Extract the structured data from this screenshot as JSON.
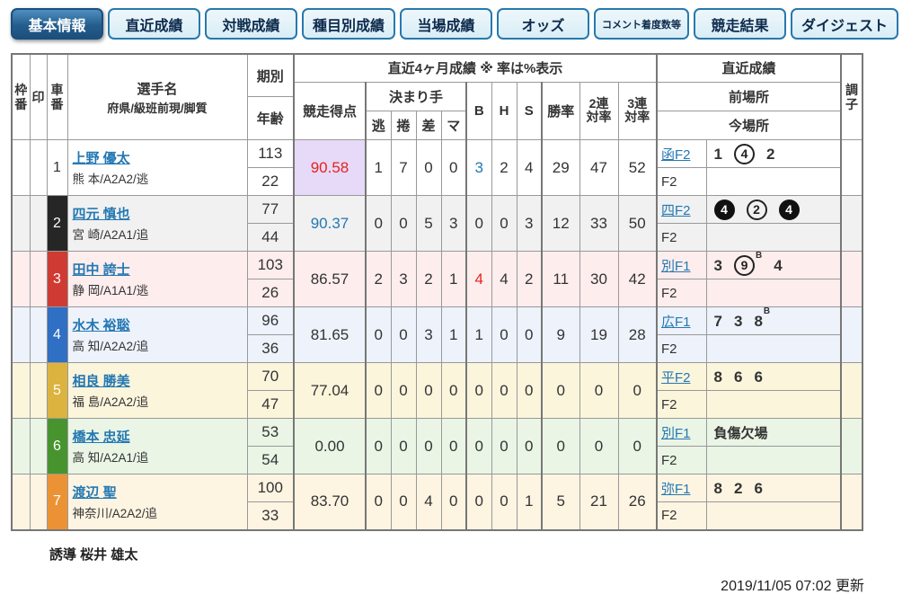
{
  "tabs": [
    {
      "id": "basic-info",
      "label": "基本情報",
      "active": true
    },
    {
      "id": "recent-results",
      "label": "直近成績"
    },
    {
      "id": "head-to-head",
      "label": "対戦成績"
    },
    {
      "id": "by-event",
      "label": "種目別成績"
    },
    {
      "id": "current-venue",
      "label": "当場成績"
    },
    {
      "id": "odds",
      "label": "オッズ"
    },
    {
      "id": "comment-finish-counts",
      "label": "コメント着度数等",
      "small": true
    },
    {
      "id": "race-results",
      "label": "競走結果"
    },
    {
      "id": "digest",
      "label": "ダイジェスト"
    }
  ],
  "table": {
    "headers": {
      "waku": "枠番",
      "mark": "印",
      "bike": "車番",
      "player_line1": "選手名",
      "player_line2": "府県/級班前現/脚質",
      "period_top": "期別",
      "period_bottom": "年齢",
      "recent4": "直近4ヶ月成績 ※ 率は%表示",
      "score": "競走得点",
      "kimarite": "決まり手",
      "kimarite_cols": [
        "逃",
        "捲",
        "差",
        "マ"
      ],
      "b": "B",
      "h": "H",
      "s": "S",
      "win": "勝率",
      "q2": [
        "2連",
        "対率"
      ],
      "q3": [
        "3連",
        "対率"
      ],
      "recent": "直近成績",
      "prev": "前場所",
      "cur": "今場所",
      "condition": "調子"
    },
    "rows": [
      {
        "waku": "",
        "mark": "",
        "bike_no": "1",
        "bike_bg": "#ffffff",
        "bike_fg": "#333333",
        "row_bg": "#ffffff",
        "name": "上野 優太",
        "profile": "熊 本/A2A2/逃",
        "period": "113",
        "age": "22",
        "score": "90.58",
        "score_color": "#e3241d",
        "score_bg": "#e7d9f8",
        "kimarite": [
          "1",
          "7",
          "0",
          "0"
        ],
        "b": "3",
        "b_color": "#2478b3",
        "h": "2",
        "s": "4",
        "win": "29",
        "q2": "47",
        "q3": "52",
        "prev_venue": "函F2",
        "prev_results": [
          {
            "t": "1"
          },
          {
            "t": "4",
            "c": "open"
          },
          {
            "t": "2"
          }
        ],
        "cur_venue": "F2",
        "cur_results": [],
        "condition": ""
      },
      {
        "waku": "",
        "mark": "",
        "bike_no": "2",
        "bike_bg": "#262626",
        "bike_fg": "#ffffff",
        "row_bg": "#f1f1f1",
        "name": "四元 慎也",
        "profile": "宮 崎/A2A1/追",
        "period": "77",
        "age": "44",
        "score": "90.37",
        "score_color": "#2478b3",
        "score_bg": "",
        "kimarite": [
          "0",
          "0",
          "5",
          "3"
        ],
        "b": "0",
        "b_color": "",
        "h": "0",
        "s": "3",
        "win": "12",
        "q2": "33",
        "q3": "50",
        "prev_venue": "四F2",
        "prev_results": [
          {
            "t": "4",
            "c": "filled"
          },
          {
            "t": "2",
            "c": "open"
          },
          {
            "t": "4",
            "c": "filled"
          }
        ],
        "cur_venue": "F2",
        "cur_results": [],
        "condition": ""
      },
      {
        "waku": "",
        "mark": "",
        "bike_no": "3",
        "bike_bg": "#cf3b33",
        "bike_fg": "#ffffff",
        "row_bg": "#fdeded",
        "name": "田中 誇士",
        "profile": "静 岡/A1A1/逃",
        "period": "103",
        "age": "26",
        "score": "86.57",
        "score_color": "",
        "score_bg": "",
        "kimarite": [
          "2",
          "3",
          "2",
          "1"
        ],
        "b": "4",
        "b_color": "#e3241d",
        "h": "4",
        "s": "2",
        "win": "11",
        "q2": "30",
        "q3": "42",
        "prev_venue": "別F1",
        "prev_results": [
          {
            "t": "3"
          },
          {
            "t": "9",
            "c": "open",
            "sup": "B"
          },
          {
            "t": "4"
          }
        ],
        "cur_venue": "F2",
        "cur_results": [],
        "condition": ""
      },
      {
        "waku": "",
        "mark": "",
        "bike_no": "4",
        "bike_bg": "#2f6fc4",
        "bike_fg": "#ffffff",
        "row_bg": "#edf2fb",
        "name": "水木 裕聡",
        "profile": "高 知/A2A2/追",
        "period": "96",
        "age": "36",
        "score": "81.65",
        "score_color": "",
        "score_bg": "",
        "kimarite": [
          "0",
          "0",
          "3",
          "1"
        ],
        "b": "1",
        "b_color": "",
        "h": "0",
        "s": "0",
        "win": "9",
        "q2": "19",
        "q3": "28",
        "prev_venue": "広F1",
        "prev_results": [
          {
            "t": "7"
          },
          {
            "t": "3"
          },
          {
            "t": "8",
            "sup": "B"
          }
        ],
        "cur_venue": "F2",
        "cur_results": [],
        "condition": ""
      },
      {
        "waku": "",
        "mark": "",
        "bike_no": "5",
        "bike_bg": "#dcb33f",
        "bike_fg": "#ffffff",
        "row_bg": "#fbf5dc",
        "name": "相良 勝美",
        "profile": "福 島/A2A2/追",
        "period": "70",
        "age": "47",
        "score": "77.04",
        "score_color": "",
        "score_bg": "",
        "kimarite": [
          "0",
          "0",
          "0",
          "0"
        ],
        "b": "0",
        "b_color": "",
        "h": "0",
        "s": "0",
        "win": "0",
        "q2": "0",
        "q3": "0",
        "prev_venue": "平F2",
        "prev_results": [
          {
            "t": "8"
          },
          {
            "t": "6"
          },
          {
            "t": "6"
          }
        ],
        "cur_venue": "F2",
        "cur_results": [],
        "condition": ""
      },
      {
        "waku": "",
        "mark": "",
        "bike_no": "6",
        "bike_bg": "#47942f",
        "bike_fg": "#ffffff",
        "row_bg": "#eaf5e5",
        "name": "橋本 忠延",
        "profile": "高 知/A2A1/追",
        "period": "53",
        "age": "54",
        "score": "0.00",
        "score_color": "",
        "score_bg": "",
        "kimarite": [
          "0",
          "0",
          "0",
          "0"
        ],
        "b": "0",
        "b_color": "",
        "h": "0",
        "s": "0",
        "win": "0",
        "q2": "0",
        "q3": "0",
        "prev_venue": "別F1",
        "prev_results": [
          {
            "t": "負傷欠場",
            "text": true
          }
        ],
        "cur_venue": "F2",
        "cur_results": [],
        "condition": ""
      },
      {
        "waku": "",
        "mark": "",
        "bike_no": "7",
        "bike_bg": "#eb9334",
        "bike_fg": "#ffffff",
        "row_bg": "#fdf4e2",
        "name": "渡辺 聖",
        "profile": "神奈川/A2A2/追",
        "period": "100",
        "age": "33",
        "score": "83.70",
        "score_color": "",
        "score_bg": "",
        "kimarite": [
          "0",
          "0",
          "4",
          "0"
        ],
        "b": "0",
        "b_color": "",
        "h": "0",
        "s": "1",
        "win": "5",
        "q2": "21",
        "q3": "26",
        "prev_venue": "弥F1",
        "prev_results": [
          {
            "t": "8"
          },
          {
            "t": "2"
          },
          {
            "t": "6"
          }
        ],
        "cur_venue": "F2",
        "cur_results": [],
        "condition": ""
      }
    ]
  },
  "footer": {
    "pacer": "誘導 桜井 雄太",
    "updated": "2019/11/05 07:02 更新"
  },
  "colors": {
    "link": "#2478b3",
    "accent_red": "#e3241d",
    "score_highlight_bg": "#e7d9f8",
    "tab_active": "#1c4f7c"
  }
}
